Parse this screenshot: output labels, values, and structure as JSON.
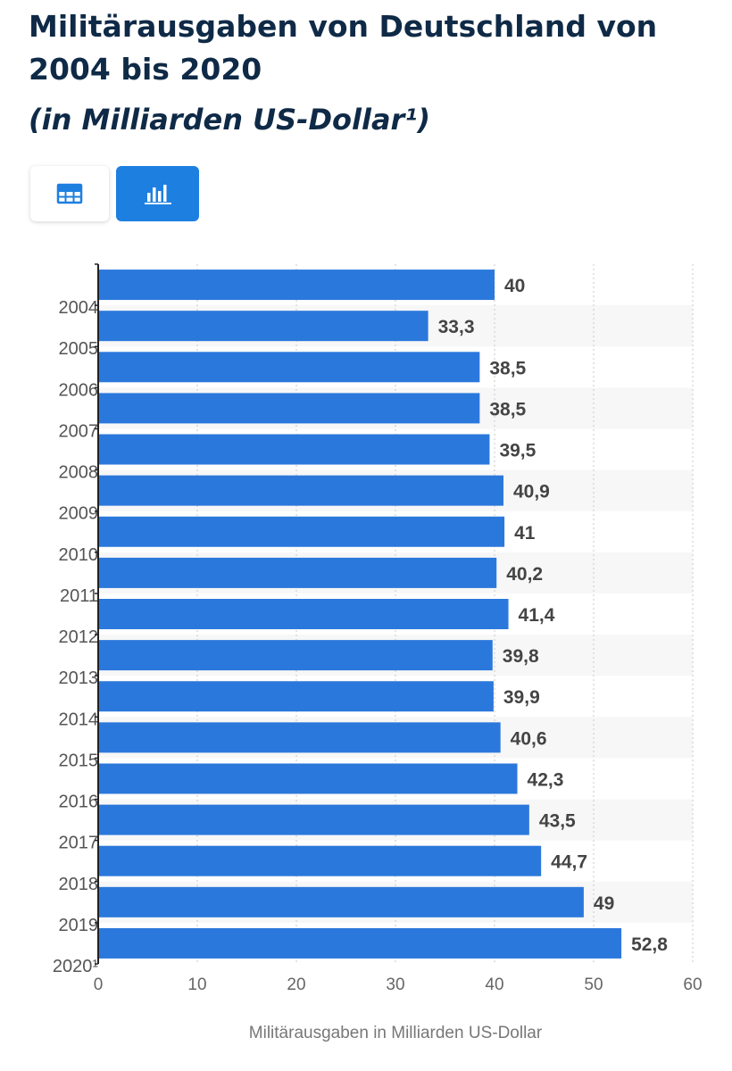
{
  "header": {
    "title": "Militärausgaben von Deutschland von 2004 bis 2020",
    "subtitle": "(in Milliarden US-Dollar¹)"
  },
  "view_toggle": {
    "table_icon": "table-icon",
    "chart_icon": "bar-chart-icon",
    "active": "chart"
  },
  "colors": {
    "bar": "#2b78dc",
    "active_button": "#1d7fe0",
    "title": "#0f2a47",
    "label": "#444444"
  },
  "chart_data": {
    "type": "bar",
    "orientation": "horizontal",
    "categories": [
      "2004",
      "2005",
      "2006",
      "2007",
      "2008",
      "2009",
      "2010",
      "2011",
      "2012",
      "2013",
      "2014",
      "2015",
      "2016",
      "2017",
      "2018",
      "2019",
      "2020¹"
    ],
    "values": [
      40,
      33.3,
      38.5,
      38.5,
      39.5,
      40.9,
      41,
      40.2,
      41.4,
      39.8,
      39.9,
      40.6,
      42.3,
      43.5,
      44.7,
      49,
      52.8
    ],
    "value_labels": [
      "40",
      "33,3",
      "38,5",
      "38,5",
      "39,5",
      "40,9",
      "41",
      "40,2",
      "41,4",
      "39,8",
      "39,9",
      "40,6",
      "42,3",
      "43,5",
      "44,7",
      "49",
      "52,8"
    ],
    "xlabel": "Militärausgaben in Milliarden US-Dollar",
    "ylabel": "",
    "xlim": [
      0,
      60
    ],
    "xticks": [
      0,
      10,
      20,
      30,
      40,
      50,
      60
    ],
    "grid": true
  }
}
